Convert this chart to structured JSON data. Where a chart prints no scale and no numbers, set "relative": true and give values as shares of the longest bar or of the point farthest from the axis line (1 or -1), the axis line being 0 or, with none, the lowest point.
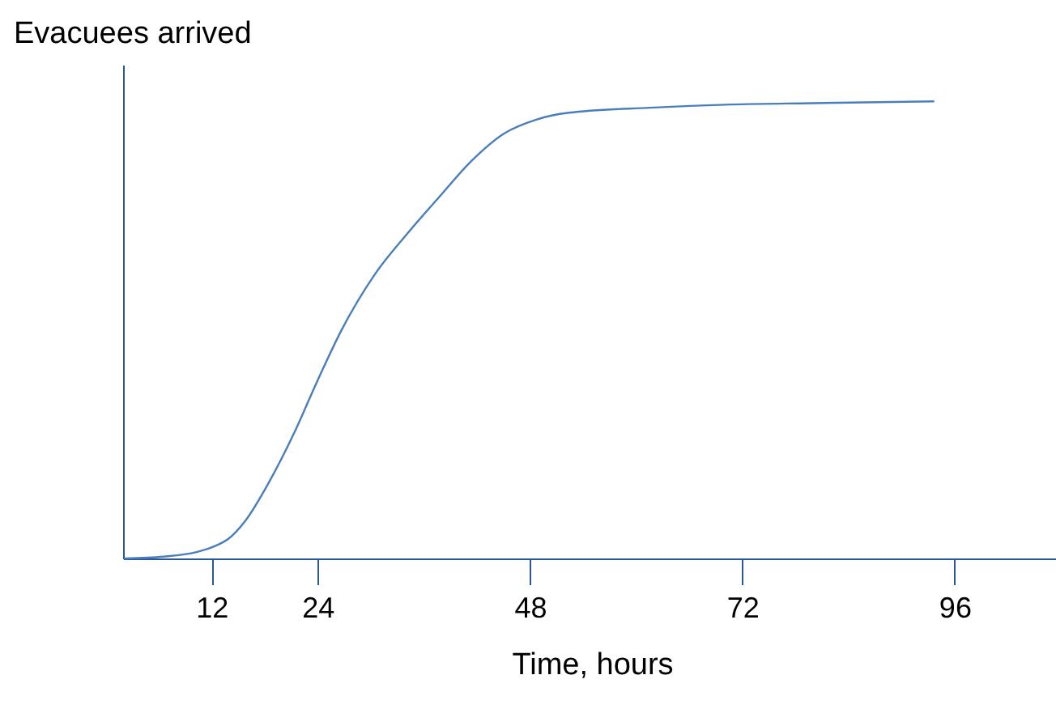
{
  "chart_data": {
    "type": "line",
    "relative": true,
    "xlabel": "Time, hours",
    "ylabel": "Evacuees arrived",
    "xlim": [
      2,
      108
    ],
    "xticks": [
      12,
      24,
      48,
      72,
      96
    ],
    "grid": false,
    "legend": false,
    "marker": "none",
    "line_style": "solid",
    "x": [
      2.2,
      6.6,
      10.3,
      12.5,
      13.9,
      15.8,
      18.5,
      21.3,
      24,
      26.7,
      30.4,
      34.1,
      37.7,
      41.4,
      45.1,
      48.7,
      52.4,
      61.5,
      70.7,
      79.9,
      93.6
    ],
    "series": [
      {
        "color": "#4a7ebb",
        "values": [
          0,
          0.004,
          0.014,
          0.028,
          0.043,
          0.082,
          0.167,
          0.273,
          0.39,
          0.5,
          0.62,
          0.71,
          0.79,
          0.87,
          0.93,
          0.96,
          0.975,
          0.986,
          0.993,
          0.996,
          1.0
        ]
      }
    ]
  }
}
